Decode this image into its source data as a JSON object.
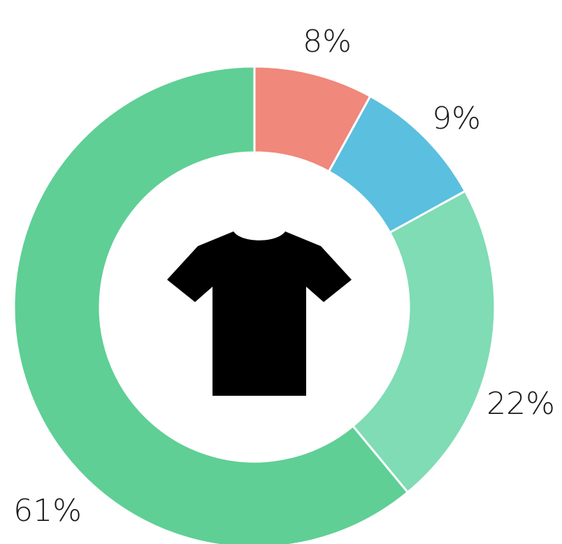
{
  "chart_data": {
    "type": "donut",
    "values": [
      8,
      9,
      22,
      61
    ],
    "value_labels": [
      "8%",
      "9%",
      "22%",
      "61%"
    ],
    "colors": [
      "#f0887b",
      "#5bbfdf",
      "#7fdcb5",
      "#5fcf95"
    ]
  }
}
